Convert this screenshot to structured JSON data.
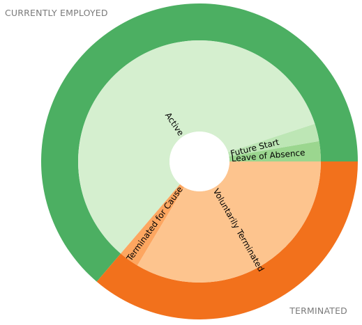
{
  "chart_data": {
    "type": "pie",
    "outer": [
      {
        "label": "CURRENTLY EMPLOYED",
        "value": 190,
        "color": "#4caf62"
      },
      {
        "label": "TERMINATED",
        "value": 108,
        "color": "#f2711c"
      }
    ],
    "inner": [
      {
        "label": "Leave of Absence",
        "value": 8,
        "color": "#9bd68f",
        "parent": "CURRENTLY EMPLOYED"
      },
      {
        "label": "Future Start",
        "value": 7,
        "color": "#bde6b5",
        "parent": "CURRENTLY EMPLOYED"
      },
      {
        "label": "Active",
        "value": 175,
        "color": "#d5efcf",
        "parent": "CURRENTLY EMPLOYED"
      },
      {
        "label": "Terminated for Cause",
        "value": 8,
        "color": "#fda660",
        "parent": "TERMINATED"
      },
      {
        "label": "Voluntarily Terminated",
        "value": 100,
        "color": "#fdc48e",
        "parent": "TERMINATED"
      }
    ]
  }
}
